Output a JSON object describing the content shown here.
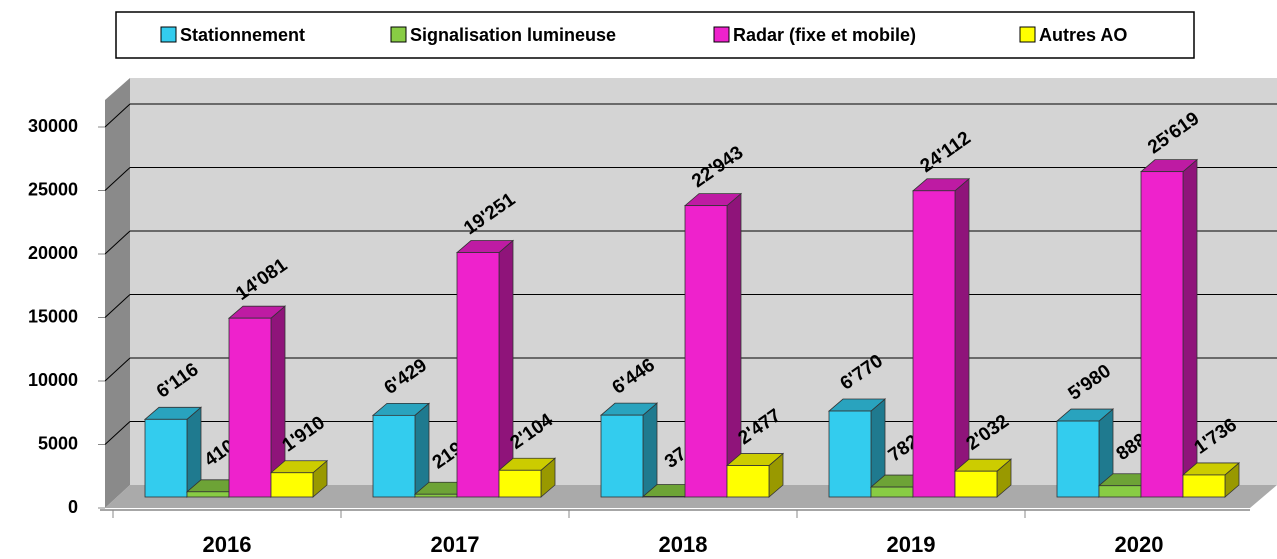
{
  "chart_data": {
    "type": "bar3d",
    "categories": [
      "2016",
      "2017",
      "2018",
      "2019",
      "2020"
    ],
    "series": [
      {
        "name": "Stationnement",
        "color": "#33ccee",
        "values": [
          6116,
          6429,
          6446,
          6770,
          5980
        ],
        "value_labels": [
          "6'116",
          "6'429",
          "6'446",
          "6'770",
          "5'980"
        ]
      },
      {
        "name": "Signalisation lumineuse",
        "color": "#88cc44",
        "values": [
          410,
          219,
          37,
          782,
          888
        ],
        "value_labels": [
          "410",
          "219",
          "37",
          "782",
          "888"
        ]
      },
      {
        "name": "Radar (fixe et mobile)",
        "color": "#ee22cc",
        "values": [
          14081,
          19251,
          22943,
          24112,
          25619
        ],
        "value_labels": [
          "14'081",
          "19'251",
          "22'943",
          "24'112",
          "25'619"
        ]
      },
      {
        "name": "Autres AO",
        "color": "#ffff00",
        "values": [
          1910,
          2104,
          2477,
          2032,
          1736
        ],
        "value_labels": [
          "1'910",
          "2'104",
          "2'477",
          "2'032",
          "1'736"
        ]
      }
    ],
    "ylim": [
      0,
      30000
    ],
    "yticks": [
      0,
      5000,
      10000,
      15000,
      20000,
      25000,
      30000
    ],
    "grid": true,
    "legend": "top"
  }
}
